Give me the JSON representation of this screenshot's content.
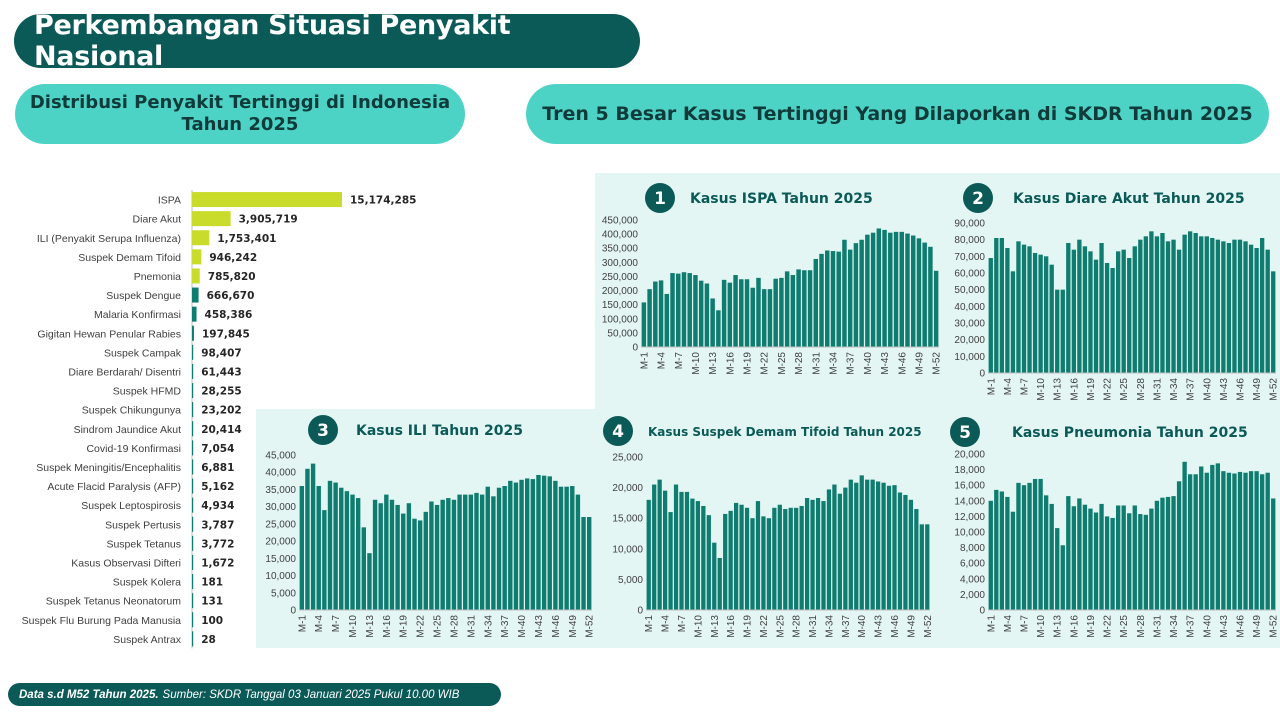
{
  "header": {
    "title": "Perkembangan Situasi Penyakit Nasional",
    "left_subtitle": "Distribusi Penyakit Tertinggi di Indonesia Tahun 2025",
    "right_subtitle": "Tren 5 Besar Kasus Tertinggi Yang Dilaporkan di SKDR Tahun 2025"
  },
  "footer": {
    "bold": "Data s.d M52 Tahun 2025.",
    "text": "Sumber: SKDR Tanggal 03 Januari 2025 Pukul 10.00 WIB"
  },
  "colors": {
    "dark_teal": "#0b5a57",
    "light_teal": "#4dd3c5",
    "panel_bg": "#e3f6f4",
    "bar_teal": "#0e7c6f",
    "bar_yellow": "#c9dc2b"
  },
  "chart_data": [
    {
      "type": "bar",
      "orientation": "horizontal",
      "title": "",
      "categories": [
        "ISPA",
        "Diare Akut",
        "ILI (Penyakit Serupa Influenza)",
        "Suspek Demam Tifoid",
        "Pnemonia",
        "Suspek Dengue",
        "Malaria Konfirmasi",
        "Gigitan Hewan Penular Rabies",
        "Suspek Campak",
        "Diare Berdarah/ Disentri",
        "Suspek HFMD",
        "Suspek Chikungunya",
        "Sindrom Jaundice Akut",
        "Covid-19 Konfirmasi",
        "Suspek Meningitis/Encephalitis",
        "Acute Flacid Paralysis (AFP)",
        "Suspek Leptospirosis",
        "Suspek Pertusis",
        "Suspek Tetanus",
        "Kasus Observasi Difteri",
        "Suspek Kolera",
        "Suspek Tetanus Neonatorum",
        "Suspek Flu Burung Pada Manusia",
        "Suspek Antrax"
      ],
      "values": [
        15174285,
        3905719,
        1753401,
        946242,
        785820,
        666670,
        458386,
        197845,
        98407,
        61443,
        28255,
        23202,
        20414,
        7054,
        6881,
        5162,
        4934,
        3787,
        3772,
        1672,
        181,
        131,
        100,
        28
      ],
      "labels": [
        "15,174,285",
        "3,905,719",
        "1,753,401",
        "946,242",
        "785,820",
        "666,670",
        "458,386",
        "197,845",
        "98,407",
        "61,443",
        "28,255",
        "23,202",
        "20,414",
        "7,054",
        "6,881",
        "5,162",
        "4,934",
        "3,787",
        "3,772",
        "1,672",
        "181",
        "131",
        "100",
        "28"
      ],
      "highlight_count": 5
    },
    {
      "type": "bar",
      "number": "1",
      "title": "Kasus ISPA Tahun 2025",
      "ylim": [
        0,
        450000
      ],
      "yticks": [
        "0",
        "50,000",
        "100,000",
        "150,000",
        "200,000",
        "250,000",
        "300,000",
        "350,000",
        "400,000",
        "450,000"
      ],
      "xticks": [
        "M-1",
        "M-4",
        "M-7",
        "M-10",
        "M-13",
        "M-16",
        "M-19",
        "M-22",
        "M-25",
        "M-28",
        "M-31",
        "M-34",
        "M-37",
        "M-40",
        "M-43",
        "M-46",
        "M-49",
        "M-52"
      ],
      "values": [
        158000,
        205000,
        232000,
        236000,
        188000,
        262000,
        260000,
        265000,
        262000,
        255000,
        235000,
        225000,
        172000,
        130000,
        238000,
        228000,
        255000,
        240000,
        240000,
        210000,
        245000,
        205000,
        205000,
        242000,
        245000,
        268000,
        255000,
        275000,
        272000,
        272000,
        312000,
        330000,
        342000,
        340000,
        338000,
        380000,
        345000,
        368000,
        380000,
        398000,
        405000,
        420000,
        415000,
        405000,
        408000,
        408000,
        402000,
        395000,
        385000,
        370000,
        355000,
        270000
      ]
    },
    {
      "type": "bar",
      "number": "2",
      "title": "Kasus Diare Akut Tahun 2025",
      "ylim": [
        0,
        90000
      ],
      "yticks": [
        "0",
        "10,000",
        "20,000",
        "30,000",
        "40,000",
        "50,000",
        "60,000",
        "70,000",
        "80,000",
        "90,000"
      ],
      "xticks": [
        "M-1",
        "M-4",
        "M-7",
        "M-10",
        "M-13",
        "M-16",
        "M-19",
        "M-22",
        "M-25",
        "M-28",
        "M-31",
        "M-34",
        "M-37",
        "M-40",
        "M-43",
        "M-46",
        "M-49",
        "M-52"
      ],
      "values": [
        69000,
        81000,
        81000,
        75000,
        61000,
        79000,
        77000,
        76000,
        72000,
        71000,
        70000,
        65000,
        50000,
        50000,
        78000,
        74000,
        80000,
        76000,
        73000,
        68000,
        78000,
        66000,
        63000,
        73000,
        74000,
        69000,
        76000,
        80000,
        82000,
        85000,
        82000,
        84000,
        79000,
        80000,
        74000,
        83000,
        85000,
        84000,
        82000,
        82000,
        81000,
        80000,
        79000,
        78000,
        80000,
        80000,
        79000,
        77000,
        75000,
        81000,
        74000,
        61000
      ]
    },
    {
      "type": "bar",
      "number": "3",
      "title": "Kasus ILI Tahun 2025",
      "ylim": [
        0,
        45000
      ],
      "yticks": [
        "0",
        "5,000",
        "10,000",
        "15,000",
        "20,000",
        "25,000",
        "30,000",
        "35,000",
        "40,000",
        "45,000"
      ],
      "xticks": [
        "M-1",
        "M-4",
        "M-7",
        "M-10",
        "M-13",
        "M-16",
        "M-19",
        "M-22",
        "M-25",
        "M-28",
        "M-31",
        "M-34",
        "M-37",
        "M-40",
        "M-43",
        "M-46",
        "M-49",
        "M-52"
      ],
      "values": [
        36000,
        41000,
        42500,
        36000,
        29000,
        37500,
        37000,
        35500,
        34500,
        33500,
        32500,
        24000,
        16500,
        32000,
        31000,
        33500,
        32000,
        30500,
        28000,
        31000,
        26500,
        26000,
        28500,
        31500,
        30500,
        32000,
        32500,
        32000,
        33500,
        33500,
        33500,
        34000,
        33500,
        35800,
        33000,
        35500,
        36000,
        37500,
        37000,
        37800,
        38200,
        38000,
        39200,
        39000,
        38800,
        37500,
        35800,
        35800,
        36000,
        33500,
        27000,
        27000
      ]
    },
    {
      "type": "bar",
      "number": "4",
      "title": "Kasus Suspek Demam Tifoid Tahun 2025",
      "ylim": [
        0,
        25000
      ],
      "yticks": [
        "0",
        "5,000",
        "10,000",
        "15,000",
        "20,000",
        "25,000"
      ],
      "xticks": [
        "M-1",
        "M-4",
        "M-7",
        "M-10",
        "M-13",
        "M-16",
        "M-19",
        "M-22",
        "M-25",
        "M-28",
        "M-31",
        "M-34",
        "M-37",
        "M-40",
        "M-43",
        "M-46",
        "M-49",
        "M-52"
      ],
      "values": [
        18000,
        20500,
        21300,
        19500,
        16000,
        20500,
        19300,
        19300,
        18200,
        17800,
        17000,
        15500,
        11000,
        8500,
        15700,
        16200,
        17500,
        17200,
        16700,
        15000,
        17800,
        15300,
        15000,
        16700,
        17200,
        16500,
        16700,
        16700,
        17000,
        18300,
        18000,
        18300,
        17800,
        19700,
        20500,
        19000,
        20000,
        21300,
        20800,
        22000,
        21300,
        21300,
        21000,
        20800,
        20300,
        20400,
        19200,
        18800,
        18000,
        16500,
        14000,
        14000
      ]
    },
    {
      "type": "bar",
      "number": "5",
      "title": "Kasus Pneumonia Tahun 2025",
      "ylim": [
        0,
        20000
      ],
      "yticks": [
        "0",
        "2,000",
        "4,000",
        "6,000",
        "8,000",
        "10,000",
        "12,000",
        "14,000",
        "16,000",
        "18,000",
        "20,000"
      ],
      "xticks": [
        "M-1",
        "M-4",
        "M-7",
        "M-10",
        "M-13",
        "M-16",
        "M-19",
        "M-22",
        "M-25",
        "M-28",
        "M-31",
        "M-34",
        "M-37",
        "M-40",
        "M-43",
        "M-46",
        "M-49",
        "M-52"
      ],
      "values": [
        14000,
        15400,
        15200,
        14500,
        12600,
        16300,
        16000,
        16300,
        16800,
        16800,
        14700,
        13600,
        10500,
        8300,
        14600,
        13300,
        14300,
        13500,
        13000,
        12500,
        13600,
        12000,
        11800,
        13400,
        13400,
        12400,
        13400,
        12300,
        12200,
        13000,
        14000,
        14400,
        14500,
        14600,
        16500,
        19000,
        17400,
        17400,
        18400,
        17600,
        18600,
        18800,
        17800,
        17600,
        17500,
        17700,
        17600,
        17800,
        17800,
        17400,
        17600,
        14300
      ]
    }
  ]
}
